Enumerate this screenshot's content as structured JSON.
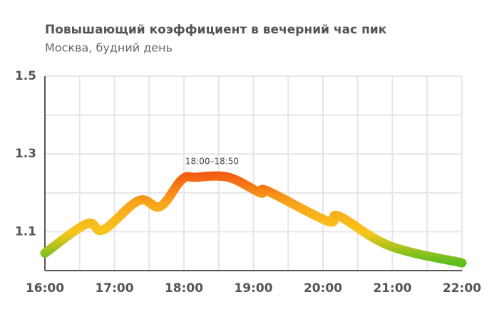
{
  "chart_data": {
    "type": "line",
    "title": "Повышающий коэффициент в вечерний час пик",
    "subtitle": "Москва, будний день",
    "annotation": "18:00–18:50",
    "x": [
      16.0,
      16.6,
      16.84,
      17.35,
      17.66,
      17.97,
      18.17,
      18.64,
      19.1,
      19.2,
      20.07,
      20.23,
      20.97,
      22.0
    ],
    "series": [
      {
        "values": [
          1.045,
          1.12,
          1.105,
          1.18,
          1.165,
          1.234,
          1.24,
          1.24,
          1.2,
          1.205,
          1.127,
          1.14,
          1.063,
          1.02
        ]
      }
    ],
    "gradient_colors": [
      "#5cbf1e",
      "#f7c61d",
      "#f9a51b",
      "#f25a12"
    ],
    "xlim": [
      16,
      22
    ],
    "xticks": [
      {
        "value": 16,
        "label": "16:00"
      },
      {
        "value": 17,
        "label": "17:00"
      },
      {
        "value": 18,
        "label": "18:00"
      },
      {
        "value": 19,
        "label": "19:00"
      },
      {
        "value": 20,
        "label": "20:00"
      },
      {
        "value": 21,
        "label": "21:00"
      },
      {
        "value": 22,
        "label": "22:00"
      }
    ],
    "minor_xticks": [
      16.5,
      17.5,
      18.5,
      19.5,
      20.5,
      21.5
    ],
    "ylim": [
      1.0,
      1.5
    ],
    "yticks": [
      1.1,
      1.3,
      1.5
    ],
    "minor_yticks": [
      1.2,
      1.4
    ],
    "grid": true
  }
}
